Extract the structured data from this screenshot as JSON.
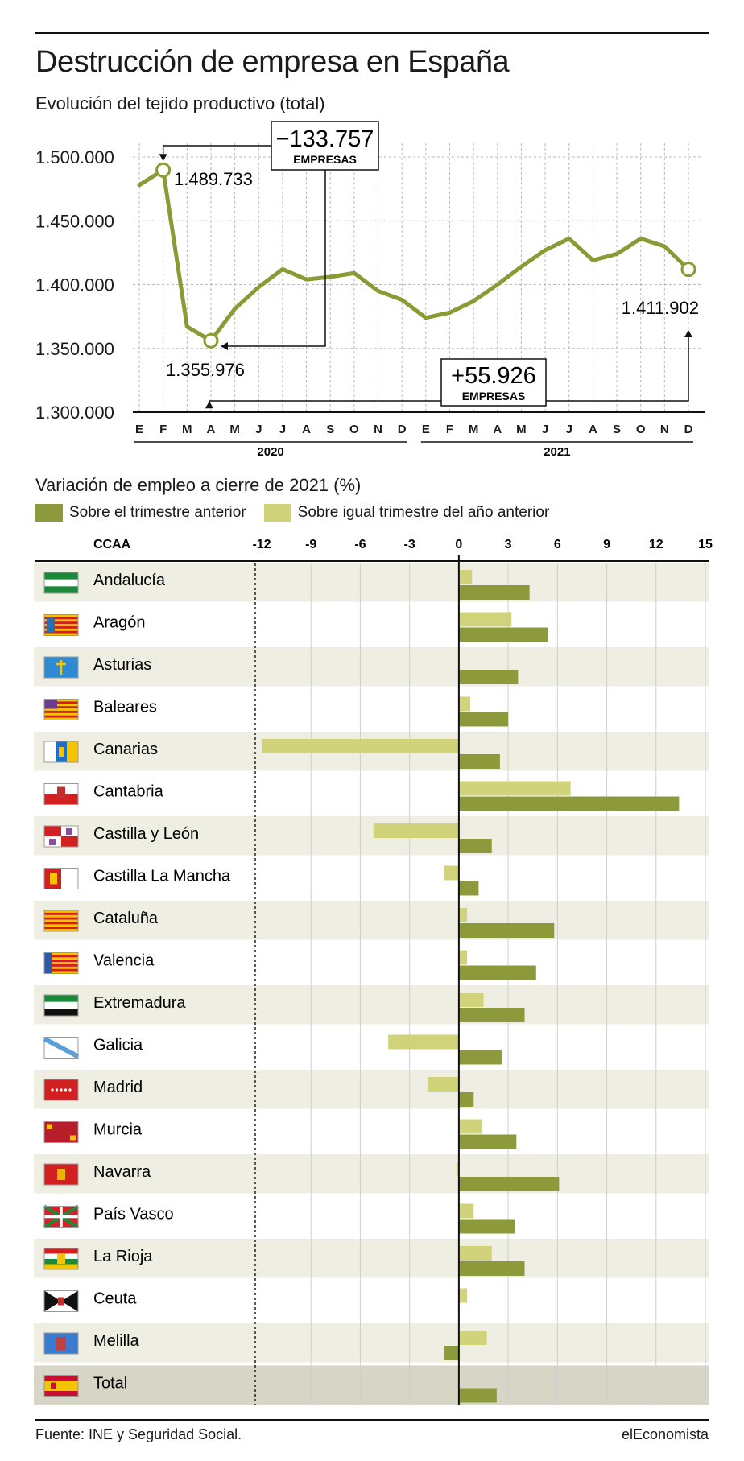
{
  "title": "Destrucción de empresa en España",
  "subtitle": "Evolución del tejido productivo (total)",
  "subtitle2": "Variación de empleo a cierre de 2021 (%)",
  "legend": {
    "quarter_label": "Sobre el trimestre anterior",
    "year_label": "Sobre igual trimestre del año anterior"
  },
  "colors": {
    "line": "#8a9a35",
    "quarter": "#8c9a3c",
    "year": "#d1d37a",
    "band": "#efeee3",
    "total_band": "#d6d5c6"
  },
  "source": "Fuente: INE y Seguridad Social.",
  "brand": "elEconomista",
  "chart_data": [
    {
      "type": "line",
      "title": "Evolución del tejido productivo (total)",
      "x": [
        "E",
        "F",
        "M",
        "A",
        "M",
        "J",
        "J",
        "A",
        "S",
        "O",
        "N",
        "D",
        "E",
        "F",
        "M",
        "A",
        "M",
        "J",
        "J",
        "A",
        "S",
        "O",
        "N",
        "D"
      ],
      "years": [
        {
          "label": "2020"
        },
        {
          "label": "2021"
        }
      ],
      "values": [
        1478000,
        1489733,
        1367000,
        1355976,
        1381000,
        1398000,
        1412000,
        1404000,
        1406000,
        1409000,
        1395000,
        1388000,
        1374000,
        1378000,
        1387000,
        1400000,
        1414000,
        1427000,
        1436000,
        1419000,
        1424000,
        1436000,
        1430000,
        1411902
      ],
      "ylim": [
        1300000,
        1510000
      ],
      "yticks": [
        "1.300.000",
        "1.350.000",
        "1.400.000",
        "1.450.000",
        "1.500.000"
      ],
      "ytick_values": [
        1300000,
        1350000,
        1400000,
        1450000,
        1500000
      ],
      "grid": true,
      "annotations": {
        "max_label": "1.489.733",
        "min_label": "1.355.976",
        "end_label": "1.411.902",
        "drop_value": "−133.757",
        "drop_unit": "EMPRESAS",
        "rise_value": "+55.926",
        "rise_unit": "EMPRESAS"
      }
    },
    {
      "type": "bar",
      "title": "Variación de empleo a cierre de 2021 (%)",
      "category_header": "CCAA",
      "xticks": [
        -12,
        -9,
        -6,
        -3,
        0,
        3,
        6,
        9,
        12,
        15
      ],
      "xlim": [
        -12,
        15
      ],
      "categories": [
        "Andalucía",
        "Aragón",
        "Asturias",
        "Baleares",
        "Canarias",
        "Cantabria",
        "Castilla y León",
        "Castilla La Mancha",
        "Cataluña",
        "Valencia",
        "Extremadura",
        "Galicia",
        "Madrid",
        "Murcia",
        "Navarra",
        "País Vasco",
        "La Rioja",
        "Ceuta",
        "Melilla",
        "Total"
      ],
      "series": [
        {
          "name": "Sobre igual trimestre del año anterior",
          "values": [
            0.8,
            3.2,
            0,
            0.7,
            -12,
            6.8,
            -5.2,
            -0.9,
            0.5,
            0.5,
            1.5,
            -4.3,
            -1.9,
            1.4,
            -0.1,
            0.9,
            2.0,
            0.5,
            1.7,
            0
          ]
        },
        {
          "name": "Sobre el trimestre anterior",
          "values": [
            4.3,
            5.4,
            3.6,
            3.0,
            2.5,
            13.4,
            2.0,
            1.2,
            5.8,
            4.7,
            4.0,
            2.6,
            0.9,
            3.5,
            6.1,
            3.4,
            4.0,
            0,
            -0.9,
            2.3
          ]
        }
      ],
      "flags": [
        "andalucia-flag-icon",
        "aragon-flag-icon",
        "asturias-flag-icon",
        "baleares-flag-icon",
        "canarias-flag-icon",
        "cantabria-flag-icon",
        "castilla-leon-flag-icon",
        "castilla-la-mancha-flag-icon",
        "cataluna-flag-icon",
        "valencia-flag-icon",
        "extremadura-flag-icon",
        "galicia-flag-icon",
        "madrid-flag-icon",
        "murcia-flag-icon",
        "navarra-flag-icon",
        "pais-vasco-flag-icon",
        "la-rioja-flag-icon",
        "ceuta-flag-icon",
        "melilla-flag-icon",
        "spain-flag-icon"
      ]
    }
  ]
}
